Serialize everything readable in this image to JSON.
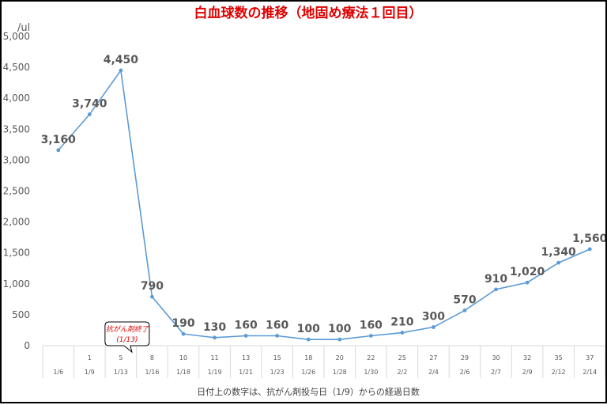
{
  "chart_data": {
    "type": "line",
    "title": "白血球数の推移（地固め療法１回目）",
    "ylabel": "/ul",
    "xlabel": "日付上の数字は、抗がん剤投与日（1/9）からの経過日数",
    "ylim": [
      0,
      5000
    ],
    "yticks": [
      "0",
      "500",
      "1,000",
      "1,500",
      "2,000",
      "2,500",
      "3,000",
      "3,500",
      "4,000",
      "4,500",
      "5,000"
    ],
    "ytick_values": [
      0,
      500,
      1000,
      1500,
      2000,
      2500,
      3000,
      3500,
      4000,
      4500,
      5000
    ],
    "grid": false,
    "line_color": "#5b9bd5",
    "days": [
      "",
      "1",
      "5",
      "8",
      "10",
      "11",
      "13",
      "15",
      "18",
      "20",
      "22",
      "25",
      "27",
      "29",
      "30",
      "32",
      "35",
      "37"
    ],
    "dates": [
      "1/6",
      "1/9",
      "1/13",
      "1/16",
      "1/18",
      "1/19",
      "1/21",
      "1/23",
      "1/26",
      "1/28",
      "1/30",
      "2/2",
      "2/4",
      "2/6",
      "2/7",
      "2/9",
      "2/12",
      "2/14"
    ],
    "values": [
      3160,
      3740,
      4450,
      790,
      190,
      130,
      160,
      160,
      100,
      100,
      160,
      210,
      300,
      570,
      910,
      1020,
      1340,
      1560
    ],
    "value_labels": [
      "3,160",
      "3,740",
      "4,450",
      "790",
      "190",
      "130",
      "160",
      "160",
      "100",
      "100",
      "160",
      "210",
      "300",
      "570",
      "910",
      "1,020",
      "1,340",
      "1,560"
    ],
    "annotation": {
      "line1": "抗がん剤終了",
      "line2": "(1/13)",
      "category_index": 2,
      "color": "#e00000"
    }
  }
}
